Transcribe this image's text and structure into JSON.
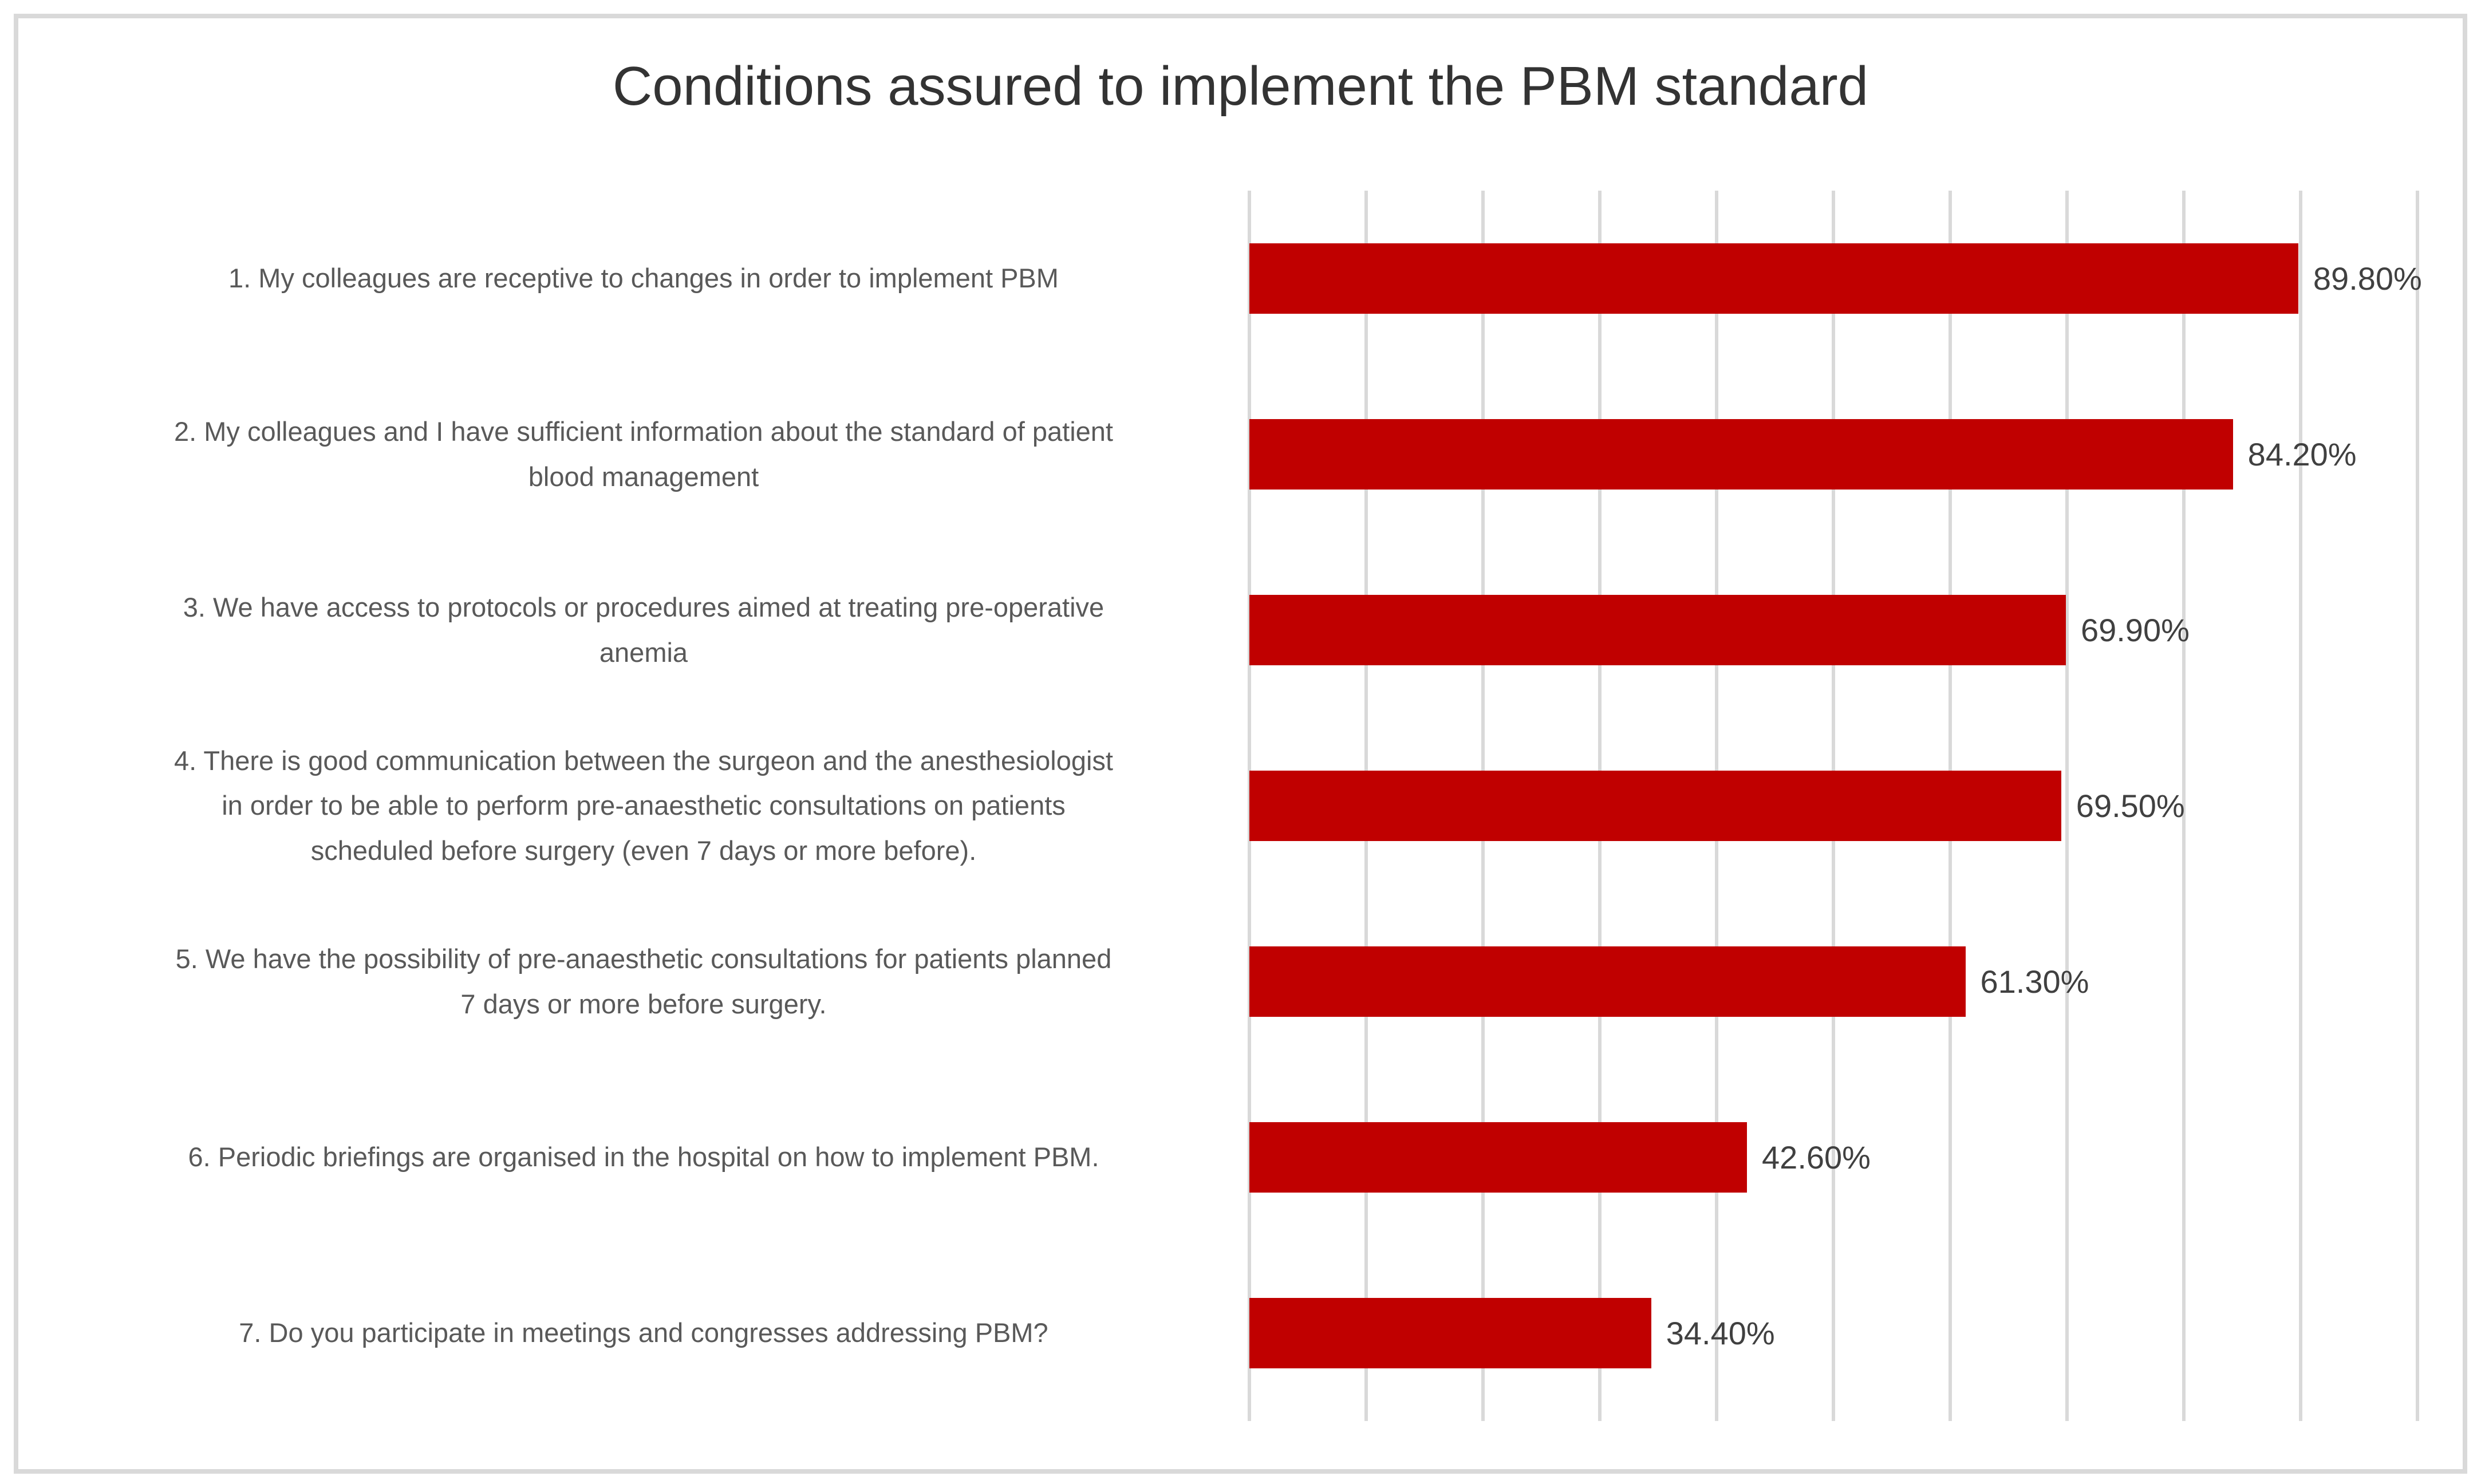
{
  "title": "Conditions assured to implement the PBM standard",
  "colors": {
    "bar": "#c00000",
    "gridline": "#d9d9d9",
    "frame_border": "#d9d9d9",
    "title_text": "#333333",
    "category_text": "#595959",
    "value_text": "#404040",
    "background": "#ffffff"
  },
  "chart_data": {
    "type": "bar",
    "orientation": "horizontal",
    "title": "Conditions assured to implement the PBM standard",
    "categories": [
      "1. My colleagues are receptive to changes in order to implement PBM",
      "2. My colleagues and I have sufficient information about the standard of patient blood management",
      "3. We have access to protocols or procedures aimed at treating pre-operative anemia",
      "4. There is good communication between the surgeon and the anesthesiologist in order to be able to perform pre-anaesthetic consultations on patients scheduled before surgery (even 7 days or more before).",
      "5. We have the possibility of pre-anaesthetic consultations for patients planned 7 days or more before surgery.",
      "6. Periodic briefings are organised in the hospital on how to implement PBM.",
      "7. Do you participate in meetings and congresses addressing PBM?"
    ],
    "category_lines": [
      [
        "1. My colleagues are receptive to changes in order to implement PBM"
      ],
      [
        "2. My colleagues and I have sufficient information about the standard of patient",
        "blood management"
      ],
      [
        "3. We have access to protocols or procedures aimed at treating pre-operative",
        "anemia"
      ],
      [
        "4. There is good communication between the surgeon and the anesthesiologist",
        "in order to be able to perform pre-anaesthetic consultations on patients",
        "scheduled before surgery (even 7 days or more before)."
      ],
      [
        "5. We have the possibility of pre-anaesthetic consultations for patients planned",
        "7 days or more before surgery."
      ],
      [
        "6. Periodic briefings are organised in the hospital on how to implement PBM."
      ],
      [
        "7. Do you participate in meetings and congresses addressing PBM?"
      ]
    ],
    "values": [
      89.8,
      84.2,
      69.9,
      69.5,
      61.3,
      42.6,
      34.4
    ],
    "value_labels": [
      "89.80%",
      "84.20%",
      "69.90%",
      "69.50%",
      "61.30%",
      "42.60%",
      "34.40%"
    ],
    "xlabel": "",
    "ylabel": "",
    "xlim": [
      0,
      100
    ],
    "gridline_step": 10,
    "grid": true,
    "x_tick_labels_visible": false,
    "legend": "none"
  }
}
